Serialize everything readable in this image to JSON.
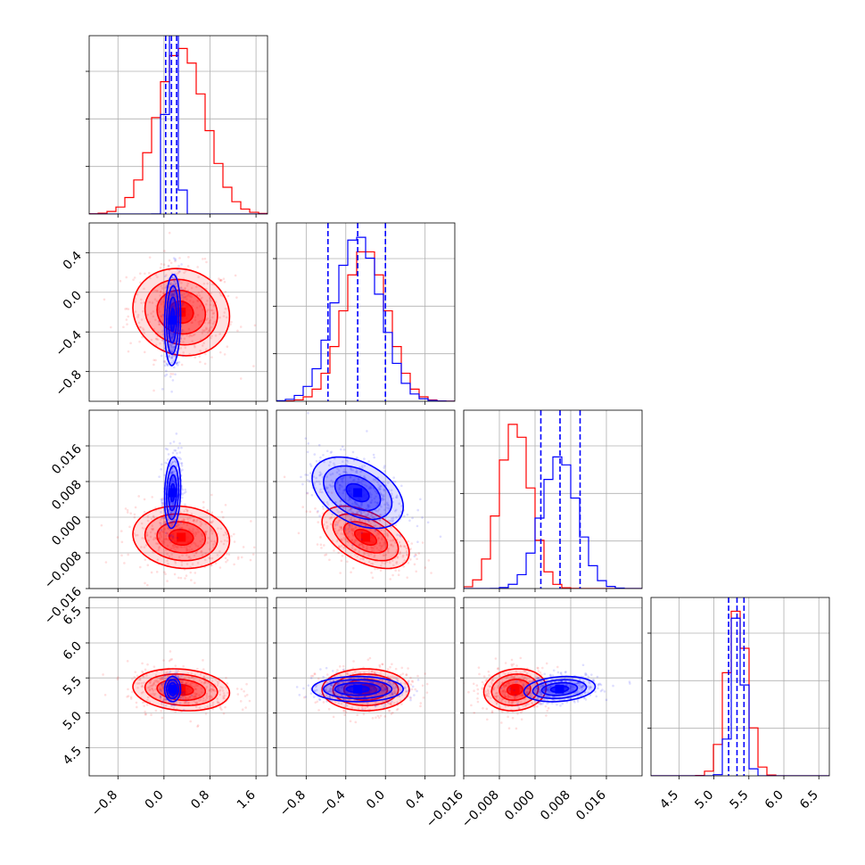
{
  "chart_data": {
    "type": "corner",
    "grid": true,
    "parameters": [
      "",
      "",
      "",
      ""
    ],
    "ranges": [
      [
        -1.3,
        1.8
      ],
      [
        -1.1,
        0.7
      ],
      [
        -0.016,
        0.024
      ],
      [
        4.1,
        6.65
      ]
    ],
    "ticks": [
      {
        "values": [
          -0.8,
          0.0,
          0.8,
          1.6
        ],
        "labels": [
          "−0.8",
          "0.0",
          "0.8",
          "1.6"
        ]
      },
      {
        "values": [
          -0.8,
          -0.4,
          0.0,
          0.4
        ],
        "labels": [
          "−0.8",
          "−0.4",
          "0.0",
          "0.4"
        ]
      },
      {
        "values": [
          -0.016,
          -0.008,
          0.0,
          0.008,
          0.016
        ],
        "labels": [
          "−0.016",
          "−0.008",
          "0.000",
          "0.008",
          "0.016"
        ]
      },
      {
        "values": [
          4.5,
          5.0,
          5.5,
          6.0,
          6.5
        ],
        "labels": [
          "4.5",
          "5.0",
          "5.5",
          "6.0",
          "6.5"
        ]
      }
    ],
    "series": [
      {
        "color": "#ff0000",
        "mean": [
          0.3,
          -0.2,
          -0.0045,
          5.33
        ],
        "sd": [
          0.42,
          0.22,
          0.0035,
          0.15
        ],
        "corr": [
          [
            1,
            -0.1,
            -0.1,
            -0.15
          ],
          [
            -0.1,
            1,
            -0.5,
            0.0
          ],
          [
            -0.1,
            -0.5,
            1,
            0.1
          ],
          [
            -0.15,
            0.0,
            0.1,
            1
          ]
        ],
        "hist_peak": [
          1.0,
          0.92,
          1.0,
          1.0
        ],
        "quantiles": []
      },
      {
        "color": "#0000ff",
        "mean": [
          0.15,
          -0.28,
          0.0055,
          5.34
        ],
        "sd": [
          0.07,
          0.23,
          0.004,
          0.09
        ],
        "corr": [
          [
            1,
            0.1,
            0.15,
            0.0
          ],
          [
            0.1,
            1,
            -0.4,
            0.0
          ],
          [
            0.15,
            -0.4,
            1,
            0.2
          ],
          [
            0.0,
            0.0,
            0.2,
            1
          ]
        ],
        "hist_peak": [
          3.6,
          1.0,
          0.8,
          1.0
        ],
        "quantiles": [
          [
            0.03,
            0.13,
            0.22
          ],
          [
            -0.58,
            -0.28,
            0.0
          ],
          [
            0.0013,
            0.0056,
            0.0101
          ],
          [
            5.21,
            5.33,
            5.43
          ]
        ]
      }
    ]
  }
}
